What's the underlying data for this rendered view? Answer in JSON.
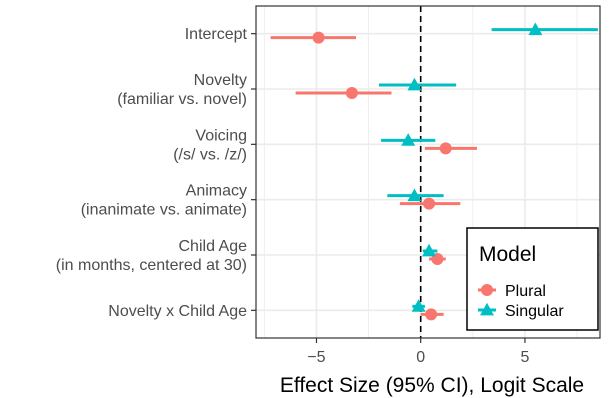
{
  "chart_data": {
    "type": "scatter",
    "subtype": "forest-plot",
    "title": "",
    "xlabel": "Effect Size (95% CI), Logit Scale",
    "ylabel": "",
    "xlim": [
      -7.9,
      8.6
    ],
    "x_ticks": [
      -5,
      0,
      5
    ],
    "x_tick_labels": [
      "−5",
      "0",
      "5"
    ],
    "reference_line": {
      "x": 0,
      "style": "dashed"
    },
    "grid": true,
    "legend_position": "bottom-right",
    "legend_title": "Model",
    "categories": [
      [
        "Intercept"
      ],
      [
        "Novelty",
        "(familiar vs. novel)"
      ],
      [
        "Voicing",
        "(/s/ vs. /z/)"
      ],
      [
        "Animacy",
        "(inanimate vs. animate)"
      ],
      [
        "Child Age",
        "(in months, centered at 30)"
      ],
      [
        "Novelty x Child Age"
      ]
    ],
    "series": [
      {
        "name": "Plural",
        "color": "#F8766D",
        "marker": "circle",
        "estimates": [
          -4.9,
          -3.3,
          1.2,
          0.4,
          0.8,
          0.5
        ],
        "ci_low": [
          -7.2,
          -6.0,
          0.2,
          -1.0,
          0.4,
          0.0
        ],
        "ci_high": [
          -3.1,
          -1.4,
          2.7,
          1.9,
          1.2,
          1.1
        ]
      },
      {
        "name": "Singular",
        "color": "#00BFC4",
        "marker": "triangle",
        "estimates": [
          5.5,
          -0.3,
          -0.6,
          -0.3,
          0.4,
          -0.1
        ],
        "ci_low": [
          3.4,
          -2.0,
          -1.9,
          -1.6,
          0.1,
          -0.4
        ],
        "ci_high": [
          8.5,
          1.7,
          0.7,
          1.1,
          0.8,
          0.2
        ]
      }
    ]
  }
}
